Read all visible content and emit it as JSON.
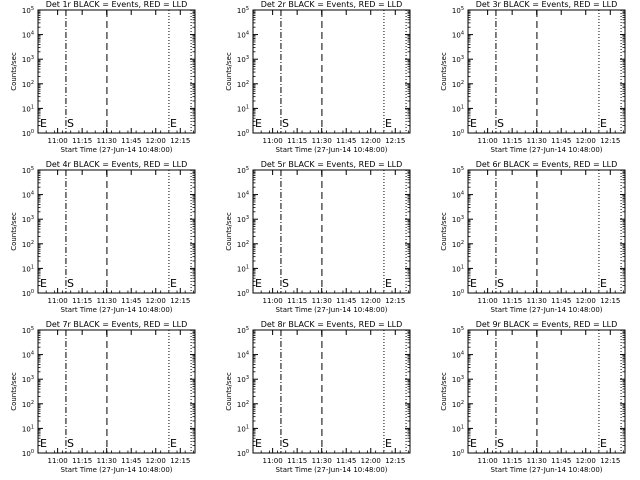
{
  "chart_data": [
    {
      "type": "line",
      "title": "Det 1r BLACK = Events, RED = LLD",
      "ylabel": "Counts/sec",
      "xlabel": "Start Time (27-Jun-14 10:48:00)",
      "x_ticks": [
        "11:00",
        "11:15",
        "11:30",
        "11:45",
        "12:00",
        "12:15"
      ],
      "y_ticks": [
        "10^0",
        "10^1",
        "10^2",
        "10^3",
        "10^4",
        "10^5"
      ],
      "ylim": [
        1,
        100000
      ],
      "yscale": "log",
      "xlim": [
        "10:48",
        "12:24"
      ],
      "series": [],
      "markers": {
        "start_label": "S",
        "end_label": "E",
        "left_label": "E"
      }
    },
    {
      "type": "line",
      "title": "Det 2r BLACK = Events, RED = LLD",
      "ylabel": "Counts/sec",
      "xlabel": "Start Time (27-Jun-14 10:48:00)",
      "x_ticks": [
        "11:00",
        "11:15",
        "11:30",
        "11:45",
        "12:00",
        "12:15"
      ],
      "y_ticks": [
        "10^0",
        "10^1",
        "10^2",
        "10^3",
        "10^4",
        "10^5"
      ],
      "ylim": [
        1,
        100000
      ],
      "yscale": "log",
      "xlim": [
        "10:48",
        "12:24"
      ],
      "series": [],
      "markers": {
        "start_label": "S",
        "end_label": "E",
        "left_label": "E"
      }
    },
    {
      "type": "line",
      "title": "Det 3r BLACK = Events, RED = LLD",
      "ylabel": "Counts/sec",
      "xlabel": "Start Time (27-Jun-14 10:48:00)",
      "x_ticks": [
        "11:00",
        "11:15",
        "11:30",
        "11:45",
        "12:00",
        "12:15"
      ],
      "y_ticks": [
        "10^0",
        "10^1",
        "10^2",
        "10^3",
        "10^4",
        "10^5"
      ],
      "ylim": [
        1,
        100000
      ],
      "yscale": "log",
      "xlim": [
        "10:48",
        "12:24"
      ],
      "series": [],
      "markers": {
        "start_label": "S",
        "end_label": "E",
        "left_label": "E"
      }
    },
    {
      "type": "line",
      "title": "Det 4r BLACK = Events, RED = LLD",
      "ylabel": "Counts/sec",
      "xlabel": "Start Time (27-Jun-14 10:48:00)",
      "x_ticks": [
        "11:00",
        "11:15",
        "11:30",
        "11:45",
        "12:00",
        "12:15"
      ],
      "y_ticks": [
        "10^0",
        "10^1",
        "10^2",
        "10^3",
        "10^4",
        "10^5"
      ],
      "ylim": [
        1,
        100000
      ],
      "yscale": "log",
      "xlim": [
        "10:48",
        "12:24"
      ],
      "series": [],
      "markers": {
        "start_label": "S",
        "end_label": "E",
        "left_label": "E"
      }
    },
    {
      "type": "line",
      "title": "Det 5r BLACK = Events, RED = LLD",
      "ylabel": "Counts/sec",
      "xlabel": "Start Time (27-Jun-14 10:48:00)",
      "x_ticks": [
        "11:00",
        "11:15",
        "11:30",
        "11:45",
        "12:00",
        "12:15"
      ],
      "y_ticks": [
        "10^0",
        "10^1",
        "10^2",
        "10^3",
        "10^4",
        "10^5"
      ],
      "ylim": [
        1,
        100000
      ],
      "yscale": "log",
      "xlim": [
        "10:48",
        "12:24"
      ],
      "series": [],
      "markers": {
        "start_label": "S",
        "end_label": "E",
        "left_label": "E"
      }
    },
    {
      "type": "line",
      "title": "Det 6r BLACK = Events, RED = LLD",
      "ylabel": "Counts/sec",
      "xlabel": "Start Time (27-Jun-14 10:48:00)",
      "x_ticks": [
        "11:00",
        "11:15",
        "11:30",
        "11:45",
        "12:00",
        "12:15"
      ],
      "y_ticks": [
        "10^0",
        "10^1",
        "10^2",
        "10^3",
        "10^4",
        "10^5"
      ],
      "ylim": [
        1,
        100000
      ],
      "yscale": "log",
      "xlim": [
        "10:48",
        "12:24"
      ],
      "series": [],
      "markers": {
        "start_label": "S",
        "end_label": "E",
        "left_label": "E"
      }
    },
    {
      "type": "line",
      "title": "Det 7r BLACK = Events, RED = LLD",
      "ylabel": "Counts/sec",
      "xlabel": "Start Time (27-Jun-14 10:48:00)",
      "x_ticks": [
        "11:00",
        "11:15",
        "11:30",
        "11:45",
        "12:00",
        "12:15"
      ],
      "y_ticks": [
        "10^0",
        "10^1",
        "10^2",
        "10^3",
        "10^4",
        "10^5"
      ],
      "ylim": [
        1,
        100000
      ],
      "yscale": "log",
      "xlim": [
        "10:48",
        "12:24"
      ],
      "series": [],
      "markers": {
        "start_label": "S",
        "end_label": "E",
        "left_label": "E"
      }
    },
    {
      "type": "line",
      "title": "Det 8r BLACK = Events, RED = LLD",
      "ylabel": "Counts/sec",
      "xlabel": "Start Time (27-Jun-14 10:48:00)",
      "x_ticks": [
        "11:00",
        "11:15",
        "11:30",
        "11:45",
        "12:00",
        "12:15"
      ],
      "y_ticks": [
        "10^0",
        "10^1",
        "10^2",
        "10^3",
        "10^4",
        "10^5"
      ],
      "ylim": [
        1,
        100000
      ],
      "yscale": "log",
      "xlim": [
        "10:48",
        "12:24"
      ],
      "series": [],
      "markers": {
        "start_label": "S",
        "end_label": "E",
        "left_label": "E"
      }
    },
    {
      "type": "line",
      "title": "Det 9r BLACK = Events, RED = LLD",
      "ylabel": "Counts/sec",
      "xlabel": "Start Time (27-Jun-14 10:48:00)",
      "x_ticks": [
        "11:00",
        "11:15",
        "11:30",
        "11:45",
        "12:00",
        "12:15"
      ],
      "y_ticks": [
        "10^0",
        "10^1",
        "10^2",
        "10^3",
        "10^4",
        "10^5"
      ],
      "ylim": [
        1,
        100000
      ],
      "yscale": "log",
      "xlim": [
        "10:48",
        "12:24"
      ],
      "series": [],
      "markers": {
        "start_label": "S",
        "end_label": "E",
        "left_label": "E"
      }
    }
  ]
}
